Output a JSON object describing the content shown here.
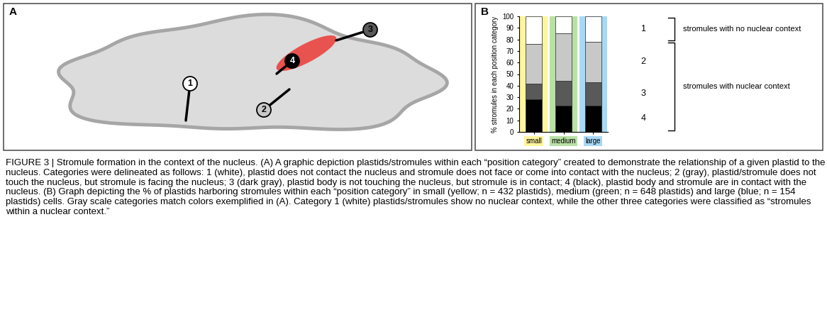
{
  "diagram": {
    "panel_label": "A",
    "plastid_labels": [
      "1",
      "2",
      "3",
      "4"
    ]
  },
  "chart_data": {
    "panel_label": "B",
    "type": "bar",
    "stacked": true,
    "y_label": "% stromules in each position category",
    "categories": [
      "small",
      "medium",
      "large"
    ],
    "series": [
      {
        "name": "4",
        "color": "#000000",
        "values": [
          28,
          23,
          23
        ]
      },
      {
        "name": "3",
        "color": "#595959",
        "values": [
          14,
          21,
          20
        ]
      },
      {
        "name": "2",
        "color": "#c8c8c8",
        "values": [
          34,
          41,
          35
        ]
      },
      {
        "name": "1",
        "color": "#ffffff",
        "values": [
          24,
          15,
          22
        ]
      }
    ],
    "groups": [
      {
        "label": "stromules with no nuclear context",
        "series": [
          "1"
        ]
      },
      {
        "label": "stromules with nuclear context",
        "series": [
          "2",
          "3",
          "4"
        ]
      }
    ],
    "ylim": [
      0,
      100
    ],
    "yticks": [
      0,
      10,
      20,
      30,
      40,
      50,
      60,
      70,
      80,
      90,
      100
    ],
    "grid": false
  },
  "caption": "FIGURE 3 | Stromule formation in the context of the nucleus. (A) A graphic depiction plastids/stromules within each “position category” created to demonstrate the relationship of a given plastid to the nucleus. Categories were delineated as follows: 1 (white), plastid does not contact the nucleus and stromule does not face or come into contact with the nucleus; 2 (gray), plastid/stromule does not touch the nucleus, but stromule is facing the nucleus; 3 (dark gray), plastid body is not touching the nucleus, but stromule is in contact; 4 (black), plastid body and stromule are in contact with the nucleus. (B) Graph depicting the % of plastids harboring stromules within each “position category” in small (yellow; n = 432 plastids), medium (green; n = 648 plastids) and large (blue; n = 154 plastids) cells. Gray scale categories match colors exemplified in (A). Category 1 (white) plastids/stromules show no nuclear context, while the other three categories were classified as “stromules within a nuclear context.”"
}
